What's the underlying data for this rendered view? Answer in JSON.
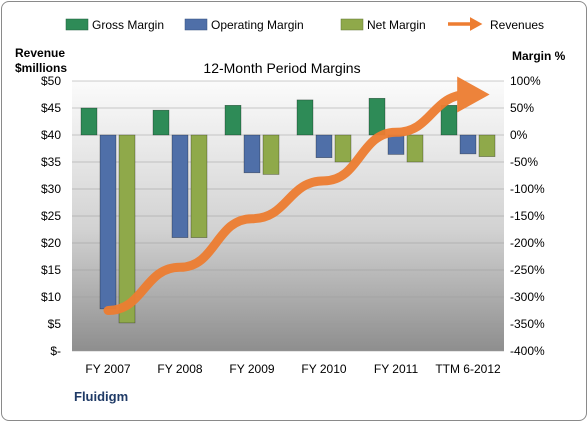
{
  "chart_data": {
    "type": "bar",
    "title": "12-Month Period Margins",
    "categories": [
      "FY 2007",
      "FY 2008",
      "FY 2009",
      "FY 2010",
      "FY 2011",
      "TTM 6-2012"
    ],
    "series": [
      {
        "name": "Gross Margin",
        "axis": "right",
        "color": "#2e8b57",
        "values": [
          50,
          46,
          55,
          65,
          68,
          55
        ]
      },
      {
        "name": "Operating Margin",
        "axis": "right",
        "color": "#4f6fa8",
        "values": [
          -322,
          -190,
          -70,
          -42,
          -36,
          -35
        ]
      },
      {
        "name": "Net Margin",
        "axis": "right",
        "color": "#8fa94a",
        "values": [
          -348,
          -190,
          -73,
          -50,
          -50,
          -40
        ]
      },
      {
        "name": "Revenues",
        "type": "line",
        "axis": "left",
        "color": "#ed7d31",
        "values": [
          7.5,
          15.5,
          24.5,
          31.5,
          40.5,
          47.5
        ]
      }
    ],
    "left_axis": {
      "label_line1": "Revenue",
      "label_line2": "$millions",
      "range": [
        0,
        50
      ],
      "ticks": [
        "$-",
        "$5",
        "$10",
        "$15",
        "$20",
        "$25",
        "$30",
        "$35",
        "$40",
        "$45",
        "$50"
      ]
    },
    "right_axis": {
      "label": "Margin %",
      "range": [
        -400,
        100
      ],
      "ticks": [
        "100%",
        "50%",
        "0%",
        "-50%",
        "-100%",
        "-150%",
        "-200%",
        "-250%",
        "-300%",
        "-350%",
        "-400%"
      ]
    },
    "legend_position": "top"
  },
  "company": "Fluidigm"
}
